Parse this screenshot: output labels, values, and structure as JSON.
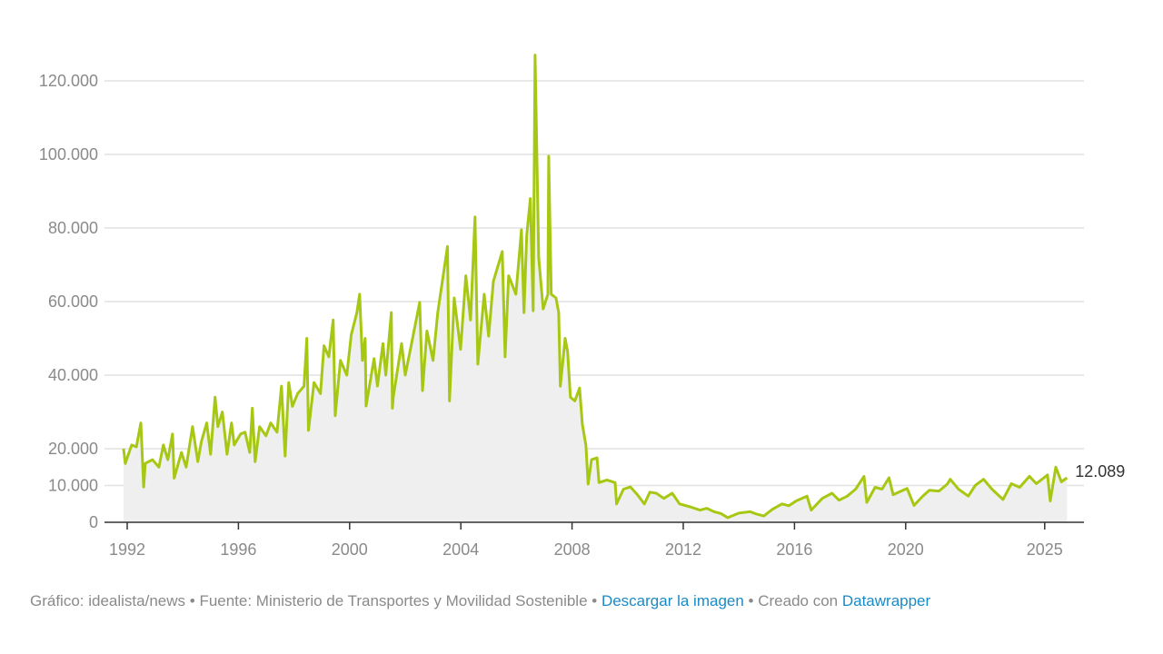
{
  "chart_data": {
    "type": "area",
    "title": "",
    "xlabel": "",
    "ylabel": "",
    "xlim": [
      1991.8,
      2025.9
    ],
    "ylim": [
      0,
      120000
    ],
    "grid": true,
    "y_ticks": [
      {
        "value": 0,
        "label": "0"
      },
      {
        "value": 10000,
        "label": "10.000"
      },
      {
        "value": 20000,
        "label": "20.000"
      },
      {
        "value": 40000,
        "label": "40.000"
      },
      {
        "value": 60000,
        "label": "60.000"
      },
      {
        "value": 80000,
        "label": "80.000"
      },
      {
        "value": 100000,
        "label": "100.000"
      },
      {
        "value": 120000,
        "label": "120.000"
      }
    ],
    "x_ticks": [
      {
        "value": 1992,
        "label": "1992"
      },
      {
        "value": 1996,
        "label": "1996"
      },
      {
        "value": 2000,
        "label": "2000"
      },
      {
        "value": 2004,
        "label": "2004"
      },
      {
        "value": 2008,
        "label": "2008"
      },
      {
        "value": 2012,
        "label": "2012"
      },
      {
        "value": 2016,
        "label": "2016"
      },
      {
        "value": 2020,
        "label": "2020"
      },
      {
        "value": 2025,
        "label": "2025"
      }
    ],
    "end_label": "12.089",
    "series": [
      {
        "name": "value",
        "color": "#a6c814",
        "fill": "#efefef",
        "points": [
          [
            1991.87,
            20000
          ],
          [
            1991.93,
            16000
          ],
          [
            1992.16,
            21000
          ],
          [
            1992.33,
            20500
          ],
          [
            1992.49,
            27000
          ],
          [
            1992.59,
            9600
          ],
          [
            1992.65,
            16000
          ],
          [
            1992.91,
            17000
          ],
          [
            1993.14,
            15000
          ],
          [
            1993.3,
            21000
          ],
          [
            1993.46,
            17000
          ],
          [
            1993.63,
            24000
          ],
          [
            1993.69,
            12000
          ],
          [
            1993.95,
            19000
          ],
          [
            1994.12,
            15000
          ],
          [
            1994.35,
            26000
          ],
          [
            1994.54,
            16500
          ],
          [
            1994.67,
            22000
          ],
          [
            1994.86,
            27000
          ],
          [
            1995.0,
            18500
          ],
          [
            1995.16,
            34000
          ],
          [
            1995.26,
            26000
          ],
          [
            1995.42,
            30000
          ],
          [
            1995.59,
            18500
          ],
          [
            1995.75,
            27000
          ],
          [
            1995.85,
            21000
          ],
          [
            1996.08,
            24000
          ],
          [
            1996.24,
            24500
          ],
          [
            1996.41,
            19000
          ],
          [
            1996.5,
            31000
          ],
          [
            1996.6,
            16500
          ],
          [
            1996.76,
            26000
          ],
          [
            1996.99,
            23500
          ],
          [
            1997.16,
            27000
          ],
          [
            1997.39,
            24500
          ],
          [
            1997.55,
            37000
          ],
          [
            1997.68,
            18000
          ],
          [
            1997.81,
            38000
          ],
          [
            1997.94,
            31500
          ],
          [
            1998.13,
            35000
          ],
          [
            1998.36,
            37000
          ],
          [
            1998.46,
            50000
          ],
          [
            1998.52,
            25000
          ],
          [
            1998.72,
            38000
          ],
          [
            1998.95,
            35000
          ],
          [
            1999.08,
            48000
          ],
          [
            1999.25,
            45000
          ],
          [
            1999.41,
            55000
          ],
          [
            1999.48,
            29000
          ],
          [
            1999.67,
            44000
          ],
          [
            1999.9,
            40000
          ],
          [
            2000.06,
            51000
          ],
          [
            2000.26,
            57000
          ],
          [
            2000.36,
            62000
          ],
          [
            2000.46,
            44000
          ],
          [
            2000.56,
            50000
          ],
          [
            2000.59,
            31600
          ],
          [
            2000.88,
            44500
          ],
          [
            2001.0,
            37000
          ],
          [
            2001.2,
            48600
          ],
          [
            2001.3,
            40000
          ],
          [
            2001.54,
            31000
          ],
          [
            2001.5,
            57000
          ],
          [
            2001.57,
            34000
          ],
          [
            2001.87,
            48600
          ],
          [
            2002.0,
            40000
          ],
          [
            2002.16,
            46000
          ],
          [
            2002.52,
            59800
          ],
          [
            2002.62,
            35800
          ],
          [
            2002.78,
            52000
          ],
          [
            2003.0,
            44000
          ],
          [
            2003.17,
            57000
          ],
          [
            2003.52,
            75000
          ],
          [
            2003.59,
            33000
          ],
          [
            2003.76,
            61000
          ],
          [
            2003.99,
            47000
          ],
          [
            2004.18,
            67000
          ],
          [
            2004.35,
            55000
          ],
          [
            2004.51,
            83000
          ],
          [
            2004.61,
            43000
          ],
          [
            2004.84,
            62000
          ],
          [
            2005.0,
            50600
          ],
          [
            2005.17,
            65500
          ],
          [
            2005.49,
            73600
          ],
          [
            2005.59,
            45000
          ],
          [
            2005.72,
            67000
          ],
          [
            2005.98,
            62000
          ],
          [
            2006.18,
            79500
          ],
          [
            2006.27,
            57000
          ],
          [
            2006.37,
            78000
          ],
          [
            2006.5,
            88000
          ],
          [
            2006.6,
            57500
          ],
          [
            2006.67,
            127000
          ],
          [
            2006.8,
            72000
          ],
          [
            2006.96,
            58000
          ],
          [
            2007.13,
            62000
          ],
          [
            2007.16,
            99500
          ],
          [
            2007.25,
            62000
          ],
          [
            2007.42,
            61000
          ],
          [
            2007.52,
            57000
          ],
          [
            2007.58,
            37000
          ],
          [
            2007.75,
            50000
          ],
          [
            2007.84,
            46400
          ],
          [
            2007.94,
            34000
          ],
          [
            2008.1,
            33000
          ],
          [
            2008.27,
            36500
          ],
          [
            2008.37,
            26700
          ],
          [
            2008.5,
            20800
          ],
          [
            2008.58,
            10400
          ],
          [
            2008.7,
            17000
          ],
          [
            2008.9,
            17500
          ],
          [
            2008.97,
            10800
          ],
          [
            2009.25,
            11500
          ],
          [
            2009.55,
            10800
          ],
          [
            2009.6,
            5000
          ],
          [
            2009.85,
            9000
          ],
          [
            2010.1,
            9600
          ],
          [
            2010.35,
            7500
          ],
          [
            2010.6,
            5000
          ],
          [
            2010.8,
            8200
          ],
          [
            2011.03,
            7900
          ],
          [
            2011.3,
            6500
          ],
          [
            2011.6,
            7900
          ],
          [
            2011.87,
            5000
          ],
          [
            2012.25,
            4200
          ],
          [
            2012.6,
            3300
          ],
          [
            2012.85,
            3800
          ],
          [
            2013.1,
            2900
          ],
          [
            2013.35,
            2400
          ],
          [
            2013.6,
            1250
          ],
          [
            2014.0,
            2500
          ],
          [
            2014.4,
            2900
          ],
          [
            2014.65,
            2200
          ],
          [
            2014.9,
            1700
          ],
          [
            2015.2,
            3500
          ],
          [
            2015.55,
            5000
          ],
          [
            2015.8,
            4500
          ],
          [
            2016.06,
            5800
          ],
          [
            2016.45,
            7100
          ],
          [
            2016.6,
            3300
          ],
          [
            2017.0,
            6500
          ],
          [
            2017.35,
            7900
          ],
          [
            2017.6,
            6000
          ],
          [
            2017.9,
            7100
          ],
          [
            2018.2,
            9000
          ],
          [
            2018.5,
            12500
          ],
          [
            2018.6,
            5400
          ],
          [
            2018.9,
            9500
          ],
          [
            2019.15,
            9000
          ],
          [
            2019.4,
            12100
          ],
          [
            2019.55,
            7500
          ],
          [
            2020.05,
            9200
          ],
          [
            2020.3,
            4600
          ],
          [
            2020.6,
            7000
          ],
          [
            2020.85,
            8700
          ],
          [
            2021.2,
            8500
          ],
          [
            2021.5,
            10400
          ],
          [
            2021.6,
            11700
          ],
          [
            2021.9,
            9000
          ],
          [
            2022.25,
            7100
          ],
          [
            2022.5,
            10000
          ],
          [
            2022.8,
            11700
          ],
          [
            2023.1,
            9000
          ],
          [
            2023.5,
            6200
          ],
          [
            2023.8,
            10500
          ],
          [
            2024.1,
            9500
          ],
          [
            2024.45,
            12500
          ],
          [
            2024.7,
            10500
          ],
          [
            2025.1,
            12900
          ],
          [
            2025.2,
            5800
          ],
          [
            2025.4,
            15000
          ],
          [
            2025.6,
            11000
          ],
          [
            2025.8,
            12089
          ]
        ]
      }
    ]
  },
  "footer": {
    "credit": "Gráfico: idealista/news",
    "sep1": " • ",
    "source": "Fuente: Ministerio de Transportes y Movilidad Sostenible",
    "sep2": " • ",
    "download_link": "Descargar la imagen",
    "sep3": " • ",
    "created_with": "Creado con ",
    "datawrapper_link": "Datawrapper"
  }
}
